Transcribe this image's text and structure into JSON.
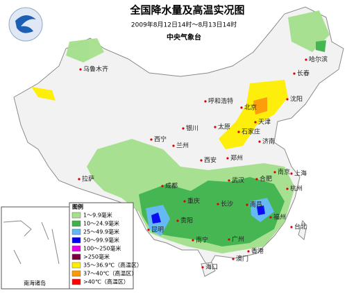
{
  "header": {
    "title": "全国降水量及高温实况图",
    "subtitle": "2009年8月12日14时～8月13日14时",
    "agency": "中央气象台"
  },
  "cities": [
    {
      "label": "乌鲁木齐"
    },
    {
      "label": "哈尔滨"
    },
    {
      "label": "长春"
    },
    {
      "label": "沈阳"
    },
    {
      "label": "呼和浩特"
    },
    {
      "label": "北京"
    },
    {
      "label": "天津"
    },
    {
      "label": "太原"
    },
    {
      "label": "石家庄"
    },
    {
      "label": "济南"
    },
    {
      "label": "银川"
    },
    {
      "label": "西宁"
    },
    {
      "label": "兰州"
    },
    {
      "label": "郑州"
    },
    {
      "label": "西安"
    },
    {
      "label": "南京"
    },
    {
      "label": "上海"
    },
    {
      "label": "合肥"
    },
    {
      "label": "武汉"
    },
    {
      "label": "杭州"
    },
    {
      "label": "成都"
    },
    {
      "label": "重庆"
    },
    {
      "label": "拉萨"
    },
    {
      "label": "长沙"
    },
    {
      "label": "南昌"
    },
    {
      "label": "贵阳"
    },
    {
      "label": "昆明"
    },
    {
      "label": "福州"
    },
    {
      "label": "台北"
    },
    {
      "label": "南宁"
    },
    {
      "label": "广州"
    },
    {
      "label": "香港"
    },
    {
      "label": "澳门"
    },
    {
      "label": "海口"
    }
  ],
  "legend": {
    "title": "图例",
    "items": [
      {
        "label": "1～9.9毫米",
        "color": "#a5e08c"
      },
      {
        "label": "10～24.9毫米",
        "color": "#3db34a"
      },
      {
        "label": "25～49.9毫米",
        "color": "#5fb8f5"
      },
      {
        "label": "50～99.9毫米",
        "color": "#0000f0"
      },
      {
        "label": "100～250毫米",
        "color": "#e600e6"
      },
      {
        "label": ">250毫米",
        "color": "#7a0040"
      },
      {
        "label": "35～36.9℃（高温区）",
        "color": "#ffee00"
      },
      {
        "label": "37～40℃（高温区）",
        "color": "#ff9900"
      },
      {
        "label": ">40℃（高温区）",
        "color": "#ff0000"
      }
    ]
  },
  "inset": {
    "label": "南海诸岛"
  }
}
